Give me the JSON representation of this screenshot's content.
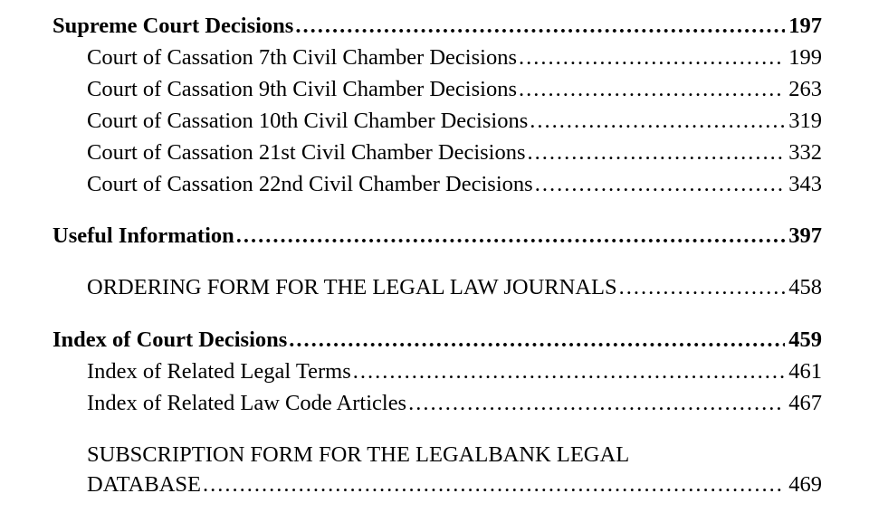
{
  "font": {
    "family": "Times New Roman",
    "size_pt": 24.5,
    "color": "#000000"
  },
  "background_color": "#ffffff",
  "leader_char": ".",
  "entries": [
    {
      "label": "Supreme Court Decisions",
      "page": "197",
      "bold": true,
      "indent": false
    },
    {
      "label": "Court of Cassation 7th Civil Chamber Decisions",
      "page": "199",
      "bold": false,
      "indent": true
    },
    {
      "label": "Court of Cassation 9th Civil Chamber Decisions",
      "page": "263",
      "bold": false,
      "indent": true
    },
    {
      "label": "Court of Cassation 10th Civil Chamber Decisions",
      "page": "319",
      "bold": false,
      "indent": true
    },
    {
      "label": "Court of Cassation 21st Civil Chamber Decisions",
      "page": "332",
      "bold": false,
      "indent": true
    },
    {
      "label": "Court of Cassation 22nd Civil Chamber Decisions",
      "page": "343",
      "bold": false,
      "indent": true
    }
  ],
  "useful_info": {
    "label": "Useful Information",
    "page": "397"
  },
  "ordering_form": {
    "label": "ORDERING FORM FOR THE LEGAL LAW JOURNALS",
    "page": "458"
  },
  "index_section": {
    "heading": {
      "label": "Index of Court Decisions",
      "page": "459"
    },
    "items": [
      {
        "label": "Index of Related Legal Terms",
        "page": "461"
      },
      {
        "label": "Index of Related Law Code Articles",
        "page": "467"
      }
    ]
  },
  "subscription": {
    "line1": "SUBSCRIPTION FORM FOR THE LEGALBANK LEGAL",
    "line2_label": "DATABASE",
    "page": "469"
  }
}
